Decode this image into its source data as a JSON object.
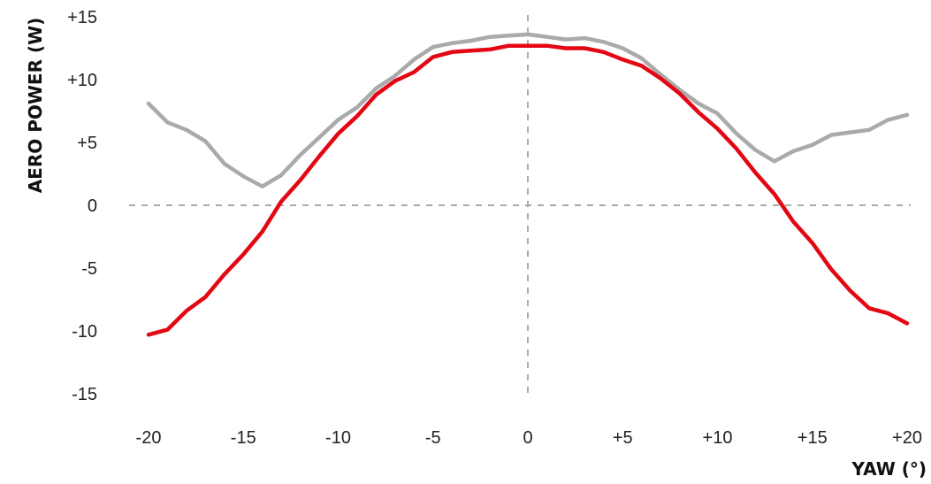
{
  "chart_data": {
    "type": "line",
    "title": "",
    "xlabel": "YAW (°)",
    "ylabel": "AERO POWER (W)",
    "xlim": [
      -20,
      20
    ],
    "ylim": [
      -15,
      15
    ],
    "x_ticks": [
      {
        "value": -20,
        "label": "-20"
      },
      {
        "value": -15,
        "label": "-15"
      },
      {
        "value": -10,
        "label": "-10"
      },
      {
        "value": -5,
        "label": "-5"
      },
      {
        "value": 0,
        "label": "0"
      },
      {
        "value": 5,
        "label": "+5"
      },
      {
        "value": 10,
        "label": "+10"
      },
      {
        "value": 15,
        "label": "+15"
      },
      {
        "value": 20,
        "label": "+20"
      }
    ],
    "y_ticks": [
      {
        "value": 15,
        "label": "+15"
      },
      {
        "value": 10,
        "label": "+10"
      },
      {
        "value": 5,
        "label": "+5"
      },
      {
        "value": 0,
        "label": "0"
      },
      {
        "value": -5,
        "label": "-5"
      },
      {
        "value": -10,
        "label": "-10"
      },
      {
        "value": -15,
        "label": "-15"
      }
    ],
    "reference_lines": {
      "x": 0,
      "y": 0,
      "style": "dashed",
      "color": "#aaaaaa"
    },
    "grid": false,
    "series": [
      {
        "color": "#aaaaaa",
        "x": [
          -20,
          -19,
          -18,
          -17,
          -16,
          -15,
          -14,
          -13,
          -12,
          -11,
          -10,
          -9,
          -8,
          -7,
          -6,
          -5,
          -4,
          -3,
          -2,
          -1,
          0,
          1,
          2,
          3,
          4,
          5,
          6,
          7,
          8,
          9,
          10,
          11,
          12,
          13,
          14,
          15,
          16,
          17,
          18,
          19,
          20
        ],
        "y": [
          8.1,
          6.6,
          6.0,
          5.1,
          3.3,
          2.3,
          1.5,
          2.4,
          4.0,
          5.4,
          6.8,
          7.8,
          9.3,
          10.3,
          11.6,
          12.6,
          12.9,
          13.1,
          13.4,
          13.5,
          13.6,
          13.4,
          13.2,
          13.3,
          13.0,
          12.5,
          11.7,
          10.4,
          9.2,
          8.1,
          7.3,
          5.7,
          4.4,
          3.5,
          4.3,
          4.8,
          5.6,
          5.8,
          6.0,
          6.8,
          7.2
        ]
      },
      {
        "color": "#e30613",
        "x": [
          -20,
          -19,
          -18,
          -17,
          -16,
          -15,
          -14,
          -13,
          -12,
          -11,
          -10,
          -9,
          -8,
          -7,
          -6,
          -5,
          -4,
          -3,
          -2,
          -1,
          0,
          1,
          2,
          3,
          4,
          5,
          6,
          7,
          8,
          9,
          10,
          11,
          12,
          13,
          14,
          15,
          16,
          17,
          18,
          19,
          20
        ],
        "y": [
          -10.3,
          -9.9,
          -8.4,
          -7.3,
          -5.5,
          -3.9,
          -2.1,
          0.3,
          2.0,
          3.9,
          5.7,
          7.1,
          8.8,
          9.9,
          10.6,
          11.8,
          12.2,
          12.3,
          12.4,
          12.7,
          12.7,
          12.7,
          12.5,
          12.5,
          12.2,
          11.6,
          11.1,
          10.1,
          8.9,
          7.4,
          6.1,
          4.5,
          2.6,
          0.9,
          -1.3,
          -3.0,
          -5.1,
          -6.8,
          -8.2,
          -8.6,
          -9.4
        ]
      }
    ]
  }
}
